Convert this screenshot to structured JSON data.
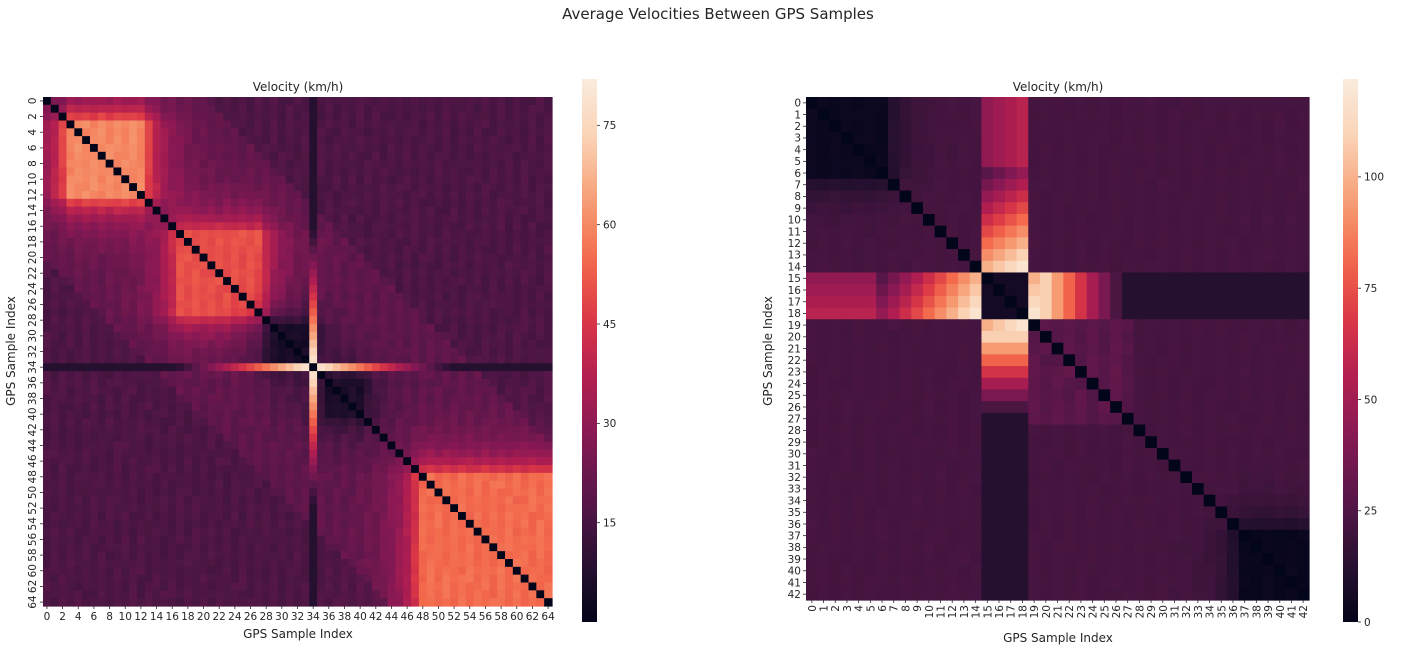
{
  "figure": {
    "suptitle": "Average Velocities Between GPS Samples"
  },
  "chart_data": [
    {
      "type": "heatmap",
      "title": "Velocity (km/h)",
      "xlabel": "GPS Sample Index",
      "ylabel": "GPS Sample Index",
      "n": 65,
      "tick_step": 2,
      "x_tick_labels": [
        "0",
        "2",
        "4",
        "6",
        "8",
        "10",
        "12",
        "14",
        "16",
        "18",
        "20",
        "22",
        "24",
        "26",
        "28",
        "30",
        "32",
        "34",
        "36",
        "38",
        "40",
        "42",
        "44",
        "46",
        "48",
        "50",
        "52",
        "54",
        "56",
        "58",
        "60",
        "62",
        "64"
      ],
      "y_tick_labels": [
        "0",
        "2",
        "4",
        "6",
        "8",
        "10",
        "12",
        "14",
        "16",
        "18",
        "20",
        "22",
        "24",
        "26",
        "28",
        "30",
        "32",
        "34",
        "36",
        "38",
        "40",
        "42",
        "44",
        "46",
        "48",
        "50",
        "52",
        "54",
        "56",
        "58",
        "60",
        "62",
        "64"
      ],
      "x_tick_rotation": 0,
      "y_tick_rotation": -90,
      "colorbar": {
        "vmin": 0,
        "vmax": 82,
        "ticks": [
          15,
          30,
          45,
          60,
          75
        ]
      },
      "features": {
        "diagonal_value": 0,
        "outlier_index": 34,
        "outlier_value": 82,
        "background_value": 20,
        "hot_clusters": [
          {
            "from": 3,
            "to": 12,
            "value": 60
          },
          {
            "from": 17,
            "to": 27,
            "value": 50
          },
          {
            "from": 48,
            "to": 64,
            "value": 55
          }
        ],
        "slow_clusters": [
          {
            "from": 29,
            "to": 33,
            "value": 5
          },
          {
            "from": 36,
            "to": 40,
            "value": 6
          }
        ]
      }
    },
    {
      "type": "heatmap",
      "title": "Velocity (km/h)",
      "xlabel": "GPS Sample Index",
      "ylabel": "GPS Sample Index",
      "n": 43,
      "tick_step": 1,
      "x_tick_labels": [
        "0",
        "1",
        "2",
        "3",
        "4",
        "5",
        "6",
        "7",
        "8",
        "9",
        "10",
        "11",
        "12",
        "13",
        "14",
        "15",
        "16",
        "17",
        "18",
        "19",
        "20",
        "21",
        "22",
        "23",
        "24",
        "25",
        "26",
        "27",
        "28",
        "29",
        "30",
        "31",
        "32",
        "33",
        "34",
        "35",
        "36",
        "37",
        "38",
        "39",
        "40",
        "41",
        "42"
      ],
      "y_tick_labels": [
        "0",
        "1",
        "2",
        "3",
        "4",
        "5",
        "6",
        "7",
        "8",
        "9",
        "10",
        "11",
        "12",
        "13",
        "14",
        "15",
        "16",
        "17",
        "18",
        "19",
        "20",
        "21",
        "22",
        "23",
        "24",
        "25",
        "26",
        "27",
        "28",
        "29",
        "30",
        "31",
        "32",
        "33",
        "34",
        "35",
        "36",
        "37",
        "38",
        "39",
        "40",
        "41",
        "42"
      ],
      "x_tick_rotation": -90,
      "y_tick_rotation": 0,
      "colorbar": {
        "vmin": 0,
        "vmax": 122,
        "ticks": [
          0,
          25,
          50,
          75,
          100
        ]
      },
      "features": {
        "diagonal_value": 0,
        "band_indices": [
          15,
          16,
          17,
          18
        ],
        "band_peak_value": 122,
        "background_value": 22,
        "slow_clusters": [
          {
            "from": 0,
            "to": 6,
            "value": 3
          },
          {
            "from": 37,
            "to": 42,
            "value": 2
          }
        ]
      }
    }
  ]
}
